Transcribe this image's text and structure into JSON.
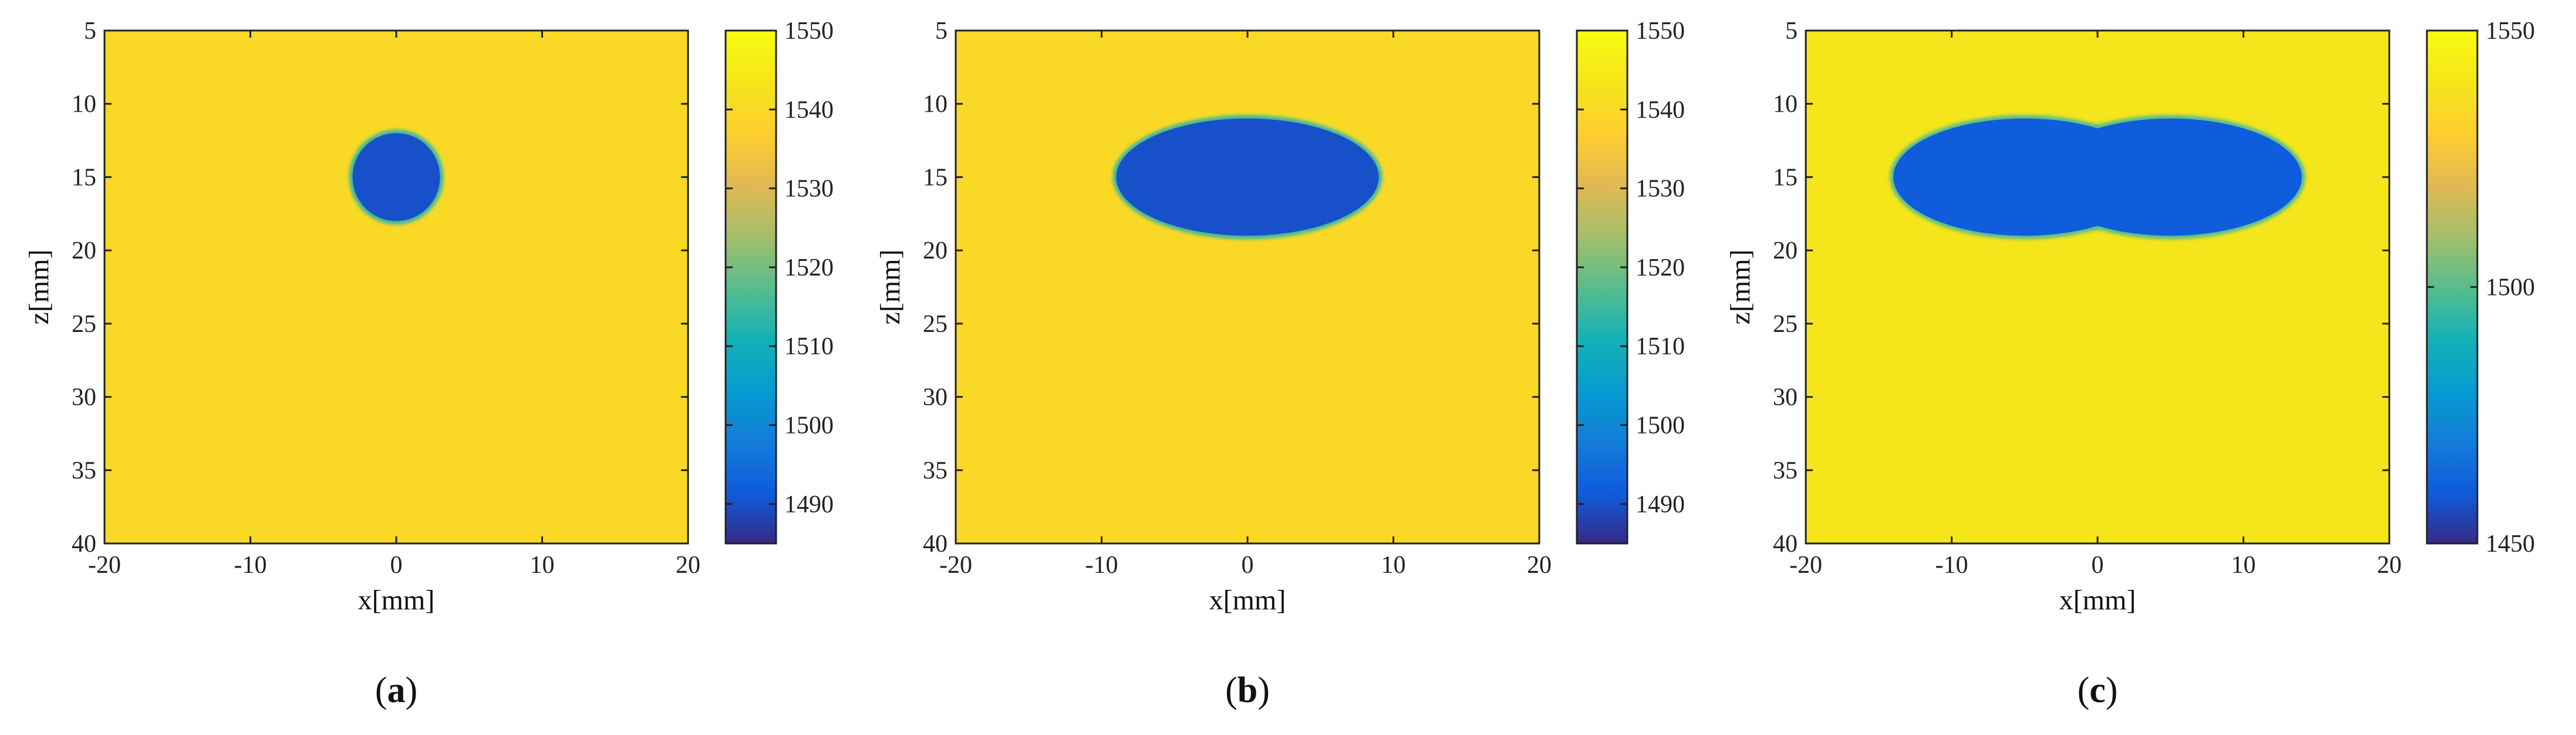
{
  "chart_data": [
    {
      "type": "heatmap",
      "panel_label": "a",
      "xlabel": "x[mm]",
      "ylabel": "z[mm]",
      "xlim": [
        -20,
        20
      ],
      "ylim": [
        40,
        5
      ],
      "xticks": [
        -20,
        -10,
        0,
        10,
        20
      ],
      "yticks": [
        5,
        10,
        15,
        20,
        25,
        30,
        35,
        40
      ],
      "colorbar": {
        "range": [
          1485,
          1550
        ],
        "ticks": [
          1490,
          1500,
          1510,
          1520,
          1530,
          1540,
          1550
        ]
      },
      "background_value": 1540,
      "inclusions": [
        {
          "shape": "ellipse",
          "cx": 0,
          "cz": 15,
          "rx": 3,
          "rz": 3,
          "value": 1490
        }
      ]
    },
    {
      "type": "heatmap",
      "panel_label": "b",
      "xlabel": "x[mm]",
      "ylabel": "z[mm]",
      "xlim": [
        -20,
        20
      ],
      "ylim": [
        40,
        5
      ],
      "xticks": [
        -20,
        -10,
        0,
        10,
        20
      ],
      "yticks": [
        5,
        10,
        15,
        20,
        25,
        30,
        35,
        40
      ],
      "colorbar": {
        "range": [
          1485,
          1550
        ],
        "ticks": [
          1490,
          1500,
          1510,
          1520,
          1530,
          1540,
          1550
        ]
      },
      "background_value": 1540,
      "inclusions": [
        {
          "shape": "ellipse",
          "cx": 0,
          "cz": 15,
          "rx": 9,
          "rz": 4,
          "value": 1490
        }
      ]
    },
    {
      "type": "heatmap",
      "panel_label": "c",
      "xlabel": "x[mm]",
      "ylabel": "z[mm]",
      "xlim": [
        -20,
        20
      ],
      "ylim": [
        40,
        5
      ],
      "xticks": [
        -20,
        -10,
        0,
        10,
        20
      ],
      "yticks": [
        5,
        10,
        15,
        20,
        25,
        30,
        35,
        40
      ],
      "colorbar": {
        "range": [
          1450,
          1550
        ],
        "ticks": [
          1450,
          1500,
          1550
        ]
      },
      "background_value": 1540,
      "inclusions": [
        {
          "shape": "ellipse",
          "cx": -5,
          "cz": 15,
          "rx": 9,
          "rz": 4,
          "value": 1460
        },
        {
          "shape": "ellipse",
          "cx": 5,
          "cz": 15,
          "rx": 9,
          "rz": 4,
          "value": 1460
        }
      ]
    }
  ]
}
